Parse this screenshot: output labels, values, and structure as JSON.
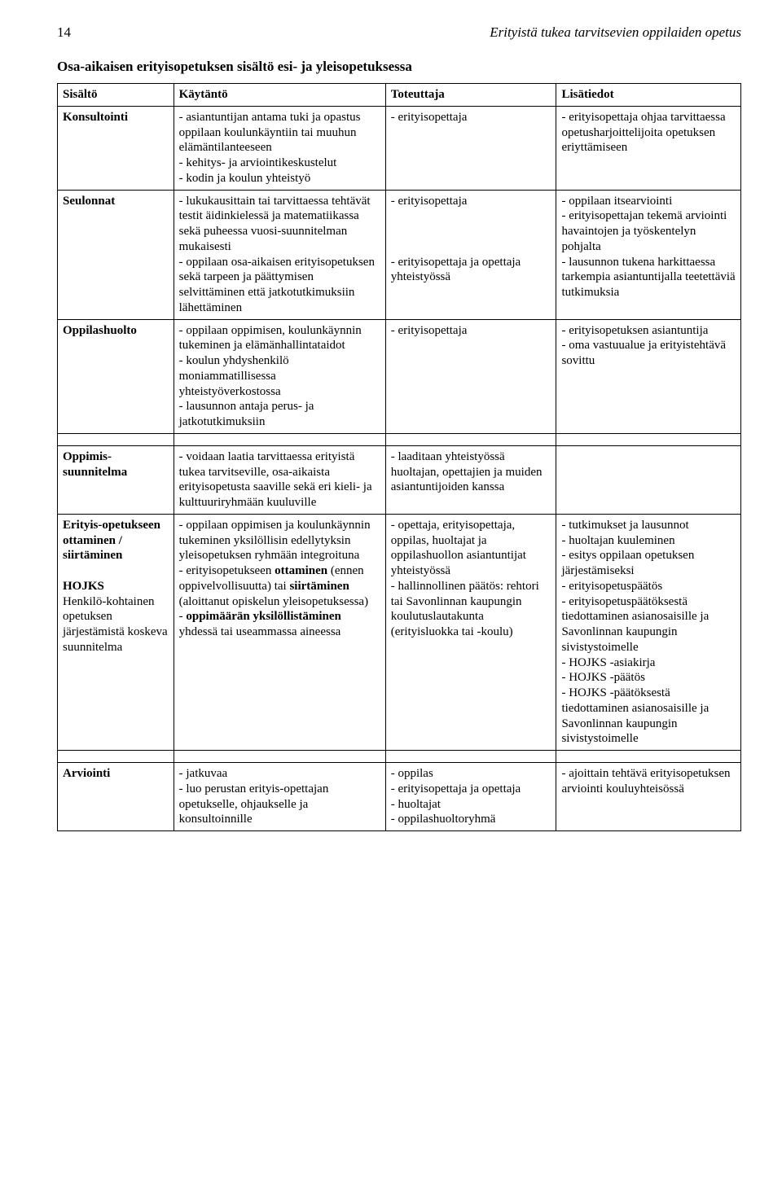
{
  "header": {
    "page_number": "14",
    "doc_title": "Erityistä tukea tarvitsevien oppilaiden opetus"
  },
  "subtitle": "Osa-aikaisen erityisopetuksen sisältö esi- ja yleisopetuksessa",
  "columns": [
    "Sisältö",
    "Käytäntö",
    "Toteuttaja",
    "Lisätiedot"
  ],
  "rows": [
    {
      "c1": "Konsultointi",
      "c2": "- asiantuntijan antama tuki ja opastus oppilaan koulunkäyntiin tai muuhun elämäntilanteeseen\n- kehitys- ja arviointikeskustelut\n- kodin ja koulun yhteistyö",
      "c3": "- erityisopettaja",
      "c4": "- erityisopettaja ohjaa tarvittaessa opetusharjoittelijoita opetuksen eriyttämiseen"
    },
    {
      "c1": "Seulonnat",
      "c2": "- lukukausittain tai tarvittaessa tehtävät testit äidinkielessä ja matematiikassa sekä puheessa vuosi-suunnitelman mukaisesti\n- oppilaan osa-aikaisen erityisopetuksen sekä tarpeen ja päättymisen selvittäminen että jatkotutkimuksiin lähettäminen",
      "c3": "- erityisopettaja\n\n\n\n- erityisopettaja ja opettaja yhteistyössä",
      "c4": "- oppilaan itsearviointi\n- erityisopettajan tekemä arviointi havaintojen ja työskentelyn pohjalta\n- lausunnon  tukena harkittaessa tarkempia asiantuntijalla teetettäviä tutkimuksia"
    },
    {
      "c1": "Oppilashuolto",
      "c2": "- oppilaan oppimisen, koulunkäynnin tukeminen ja elämänhallintataidot\n- koulun yhdyshenkilö moniammatillisessa yhteistyöverkostossa\n- lausunnon antaja perus- ja jatkotutkimuksiin",
      "c3": "- erityisopettaja",
      "c4": "- erityisopetuksen asiantuntija\n- oma vastuualue ja erityistehtävä sovittu"
    },
    {
      "c1_html": "<span class=\"bold\">Oppimis-suunnitelma</span>",
      "c2": "- voidaan laatia tarvittaessa erityistä tukea tarvitseville, osa-aikaista erityisopetusta saaville sekä eri kieli- ja kulttuuriryhmään kuuluville",
      "c3": "- laaditaan  yhteistyössä huoltajan, opettajien ja muiden asiantuntijoiden kanssa",
      "c4": ""
    },
    {
      "c1_html": "<span class=\"bold\">Erityis-opetukseen ottaminen / siirtäminen</span><br><br><span class=\"bold\">HOJKS</span><br>Henkilö-kohtainen opetuksen järjestämistä koskeva suunnitelma",
      "c2_html": "- oppilaan oppimisen ja koulunkäynnin tukeminen yksilöllisin edellytyksin yleisopetuksen ryhmään integroituna<br>- erityisopetukseen <span class=\"bold\">ottaminen</span> (ennen oppivelvollisuutta) tai <span class=\"bold\">siirtäminen</span> (aloittanut opiskelun yleisopetuksessa)<br>- <span class=\"bold\">oppimäärän yksilöllistäminen</span> yhdessä tai useammassa aineessa",
      "c3": "- opettaja, erityisopettaja, oppilas, huoltajat ja oppilashuollon asiantuntijat yhteistyössä\n- hallinnollinen päätös: rehtori tai Savonlinnan kaupungin koulutuslautakunta (erityisluokka tai -koulu)",
      "c4": "- tutkimukset ja lausunnot\n- huoltajan kuuleminen\n- esitys oppilaan opetuksen järjestämiseksi\n- erityisopetuspäätös\n- erityisopetuspäätöksestä tiedottaminen asianosaisille ja Savonlinnan kaupungin sivistystoimelle\n- HOJKS -asiakirja\n- HOJKS -päätös\n- HOJKS -päätöksestä tiedottaminen asianosaisille ja Savonlinnan kaupungin sivistystoimelle"
    },
    {
      "c1": "Arviointi",
      "c2": "- jatkuvaa\n- luo perustan erityis-opettajan opetukselle, ohjaukselle ja konsultoinnille",
      "c3": "- oppilas\n- erityisopettaja ja opettaja\n- huoltajat\n- oppilashuoltoryhmä",
      "c4": "- ajoittain tehtävä erityisopetuksen arviointi kouluyhteisössä"
    }
  ]
}
